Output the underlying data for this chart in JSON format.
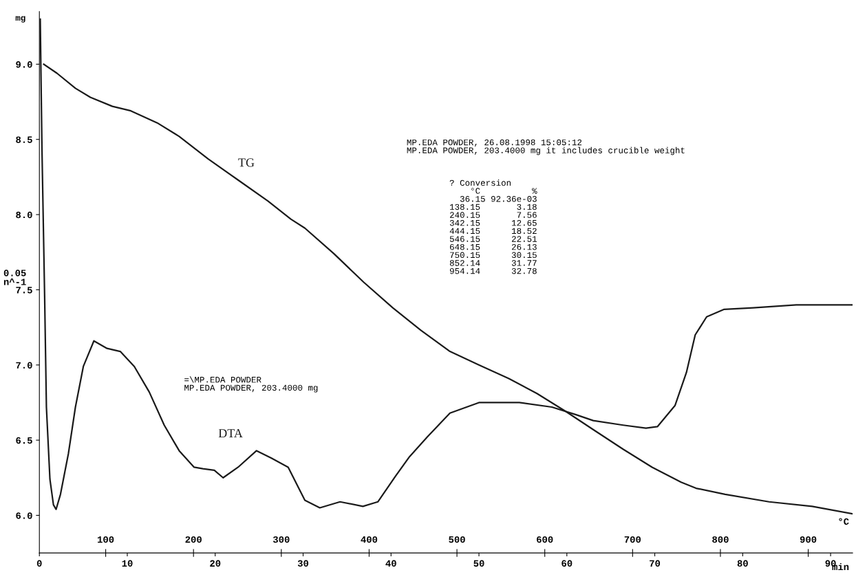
{
  "chart_data": {
    "type": "line",
    "xlabel": "min",
    "ylabel": "mg",
    "x2label": "°C",
    "xlim": [
      0,
      92.5
    ],
    "xticks": [
      0,
      10,
      20,
      30,
      40,
      50,
      60,
      70,
      80,
      90
    ],
    "x2lim": [
      24.5,
      950.5
    ],
    "x2ticks": [
      100,
      200,
      300,
      400,
      500,
      600,
      700,
      800,
      900
    ],
    "ylim": [
      5.75,
      9.35
    ],
    "yticks": [
      {
        "value": 6,
        "label": "6.0"
      },
      {
        "value": 6.5,
        "label": "6.5"
      },
      {
        "value": 7,
        "label": "7.0"
      },
      {
        "value": 7.5,
        "label": "7.5"
      },
      {
        "value": 8,
        "label": "8.0"
      },
      {
        "value": 8.5,
        "label": "8.5"
      },
      {
        "value": 9,
        "label": "9.0"
      }
    ],
    "grid": false,
    "legend": false,
    "marker": "none",
    "line_style": "solid",
    "series": [
      {
        "name": "TG",
        "color": "#1a1a1a",
        "x": [
          0.5,
          2.0,
          4.1,
          5.8,
          8.3,
          10.4,
          13.4,
          15.9,
          19.2,
          22.6,
          26.0,
          28.6,
          30.2,
          33.5,
          36.9,
          40.2,
          43.4,
          46.7,
          50.0,
          53.4,
          56.6,
          59.9,
          63.0,
          66.4,
          69.7,
          73.0,
          74.7,
          78.0,
          83.0,
          87.9,
          92.5
        ],
        "values": [
          9.0,
          8.94,
          8.84,
          8.78,
          8.72,
          8.69,
          8.61,
          8.52,
          8.37,
          8.23,
          8.09,
          7.97,
          7.91,
          7.74,
          7.55,
          7.38,
          7.23,
          7.09,
          7.0,
          6.91,
          6.81,
          6.69,
          6.57,
          6.44,
          6.32,
          6.22,
          6.18,
          6.14,
          6.09,
          6.06,
          6.01
        ]
      },
      {
        "name": "DTA",
        "color": "#1a1a1a",
        "x": [
          0.1,
          0.3,
          0.6,
          0.8,
          1.2,
          1.6,
          1.9,
          2.4,
          3.3,
          4.1,
          5.0,
          6.2,
          7.7,
          9.2,
          10.8,
          12.5,
          14.2,
          15.9,
          17.6,
          18.6,
          19.9,
          20.9,
          22.6,
          24.7,
          26.4,
          28.3,
          30.2,
          31.9,
          34.2,
          36.8,
          38.5,
          40.5,
          42.1,
          44.1,
          46.7,
          50.0,
          54.6,
          58.3,
          61.0,
          63.0,
          66.4,
          69.0,
          70.3,
          72.3,
          73.6,
          74.6,
          75.9,
          77.9,
          81.2,
          86.1,
          92.5
        ],
        "values": [
          9.3,
          8.42,
          7.45,
          6.72,
          6.24,
          6.07,
          6.04,
          6.14,
          6.41,
          6.72,
          6.99,
          7.16,
          7.11,
          7.09,
          6.99,
          6.82,
          6.6,
          6.43,
          6.32,
          6.31,
          6.3,
          6.25,
          6.32,
          6.43,
          6.38,
          6.32,
          6.1,
          6.05,
          6.09,
          6.06,
          6.09,
          6.26,
          6.39,
          6.52,
          6.68,
          6.75,
          6.75,
          6.72,
          6.67,
          6.63,
          6.6,
          6.58,
          6.59,
          6.73,
          6.95,
          7.2,
          7.32,
          7.37,
          7.38,
          7.4,
          7.4
        ]
      }
    ],
    "annotations": [
      "MP.EDA POWDER, 26.08.1998 15:05:12\nMP.EDA POWDER, 203.4000 mg it includes crucible weight",
      "? Conversion\n    °C          %\n  36.15 92.36e-03\n138.15       3.18\n240.15       7.56\n342.15      12.65\n444.15      18.52\n546.15      22.51\n648.15      26.13\n750.15      30.15\n852.14      31.77\n954.14      32.78",
      "=\\MP.EDA POWDER\nMP.EDA POWDER, 203.4000 mg",
      "0.05\nn^-1"
    ]
  }
}
